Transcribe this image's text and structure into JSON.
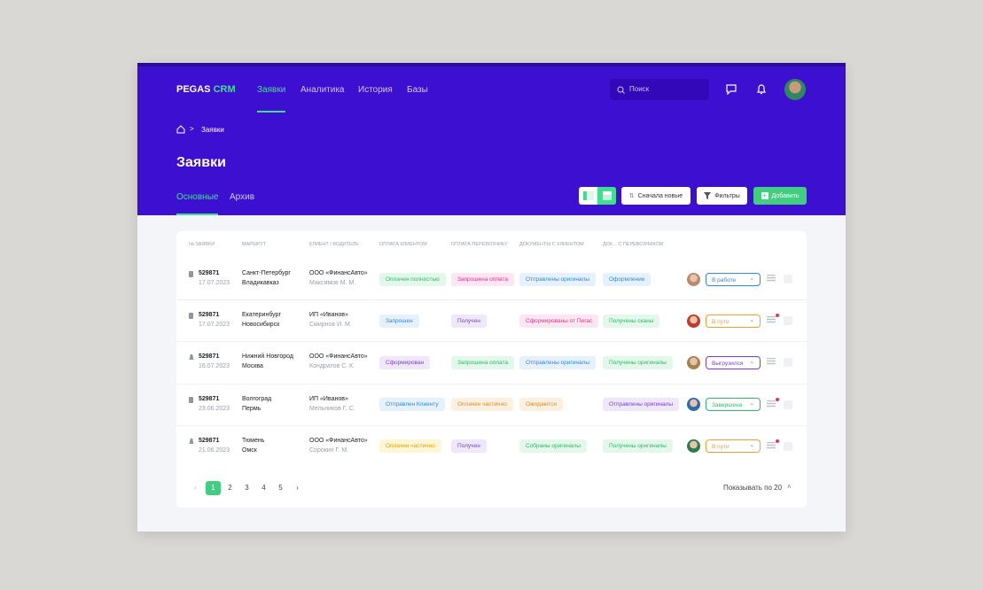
{
  "header": {
    "logo": {
      "main": "PEGAS",
      "accent": "CRM"
    },
    "nav": [
      "Заявки",
      "Аналитика",
      "История",
      "Базы"
    ],
    "search_placeholder": "Поиск"
  },
  "breadcrumb": "Заявки",
  "title": "Заявки",
  "tabs": [
    "Основные",
    "Архив"
  ],
  "toolbar": {
    "sort": "Сначала новые",
    "filter": "Фильтры",
    "add": "Добавить"
  },
  "table": {
    "columns": [
      "№ ЗАЯВКИ",
      "МАРШРУТ",
      "КЛИЕНТ / ВОДИТЕЛЬ",
      "ОПЛАТА КЛИЕНТОМ",
      "ОПЛАТА ПЕРЕВОЗЧИКУ",
      "ДОКУМЕНТЫ С КЛИЕНТОМ",
      "ДОК... С ПЕРЕВОЗЧИКОМ"
    ],
    "rows": [
      {
        "id": "529871",
        "date": "17.07.2023",
        "from": "Санкт-Петербург",
        "to": "Владикавказ",
        "client": "ООО «ФинансАвто»",
        "driver": "Максимов М. М.",
        "badges": [
          {
            "text": "Оплачен полностью",
            "color": "green"
          },
          {
            "text": "Запрошена оплата",
            "color": "pink"
          },
          {
            "text": "Отправлены оригиналы",
            "color": "blue"
          },
          {
            "text": "Оформление",
            "color": "blue"
          }
        ],
        "status": {
          "text": "В работе",
          "color": "blue"
        }
      },
      {
        "id": "529871",
        "date": "17.07.2023",
        "from": "Екатеринбург",
        "to": "Новосибирск",
        "client": "ИП «Иванов»",
        "driver": "Смирнов И. М.",
        "badges": [
          {
            "text": "Запрошен",
            "color": "blue"
          },
          {
            "text": "Получен",
            "color": "purple"
          },
          {
            "text": "Сформированы от Пегас",
            "color": "pink"
          },
          {
            "text": "Получены сканы",
            "color": "green"
          }
        ],
        "status": {
          "text": "В пути",
          "color": "orange"
        }
      },
      {
        "id": "529871",
        "date": "16.07.2023",
        "from": "Нижний Новгород",
        "to": "Москва",
        "client": "ООО «ФинансАвто»",
        "driver": "Кондратов С. К.",
        "badges": [
          {
            "text": "Сформирован",
            "color": "purple"
          },
          {
            "text": "Запрошена оплата",
            "color": "green"
          },
          {
            "text": "Отправлены оригиналы",
            "color": "blue"
          },
          {
            "text": "Получены оригиналы",
            "color": "green"
          }
        ],
        "status": {
          "text": "Выгрузился",
          "color": "purple"
        }
      },
      {
        "id": "529871",
        "date": "23.06.2023",
        "from": "Волгоград",
        "to": "Пермь",
        "client": "ИП «Иванов»",
        "driver": "Мельников Г. С.",
        "badges": [
          {
            "text": "Отправлен Клиенту",
            "color": "blue"
          },
          {
            "text": "Оплачен частично",
            "color": "orange"
          },
          {
            "text": "Ожидаются",
            "color": "orange"
          },
          {
            "text": "Отправлены оригиналы",
            "color": "purple"
          }
        ],
        "status": {
          "text": "Завершена",
          "color": "green"
        }
      },
      {
        "id": "529871",
        "date": "21.06.2023",
        "from": "Тюмень",
        "to": "Омск",
        "client": "ООО «ФинансАвто»",
        "driver": "Сорокин Г. М.",
        "badges": [
          {
            "text": "Оплачен частично",
            "color": "yellow"
          },
          {
            "text": "Получен",
            "color": "purple"
          },
          {
            "text": "Собраны оригиналы",
            "color": "green"
          },
          {
            "text": "Получены оригиналы",
            "color": "green"
          }
        ],
        "status": {
          "text": "В пути",
          "color": "orange"
        }
      }
    ]
  },
  "pagination": {
    "pages": [
      "1",
      "2",
      "3",
      "4",
      "5"
    ],
    "page_size": "Показывать по 20"
  }
}
